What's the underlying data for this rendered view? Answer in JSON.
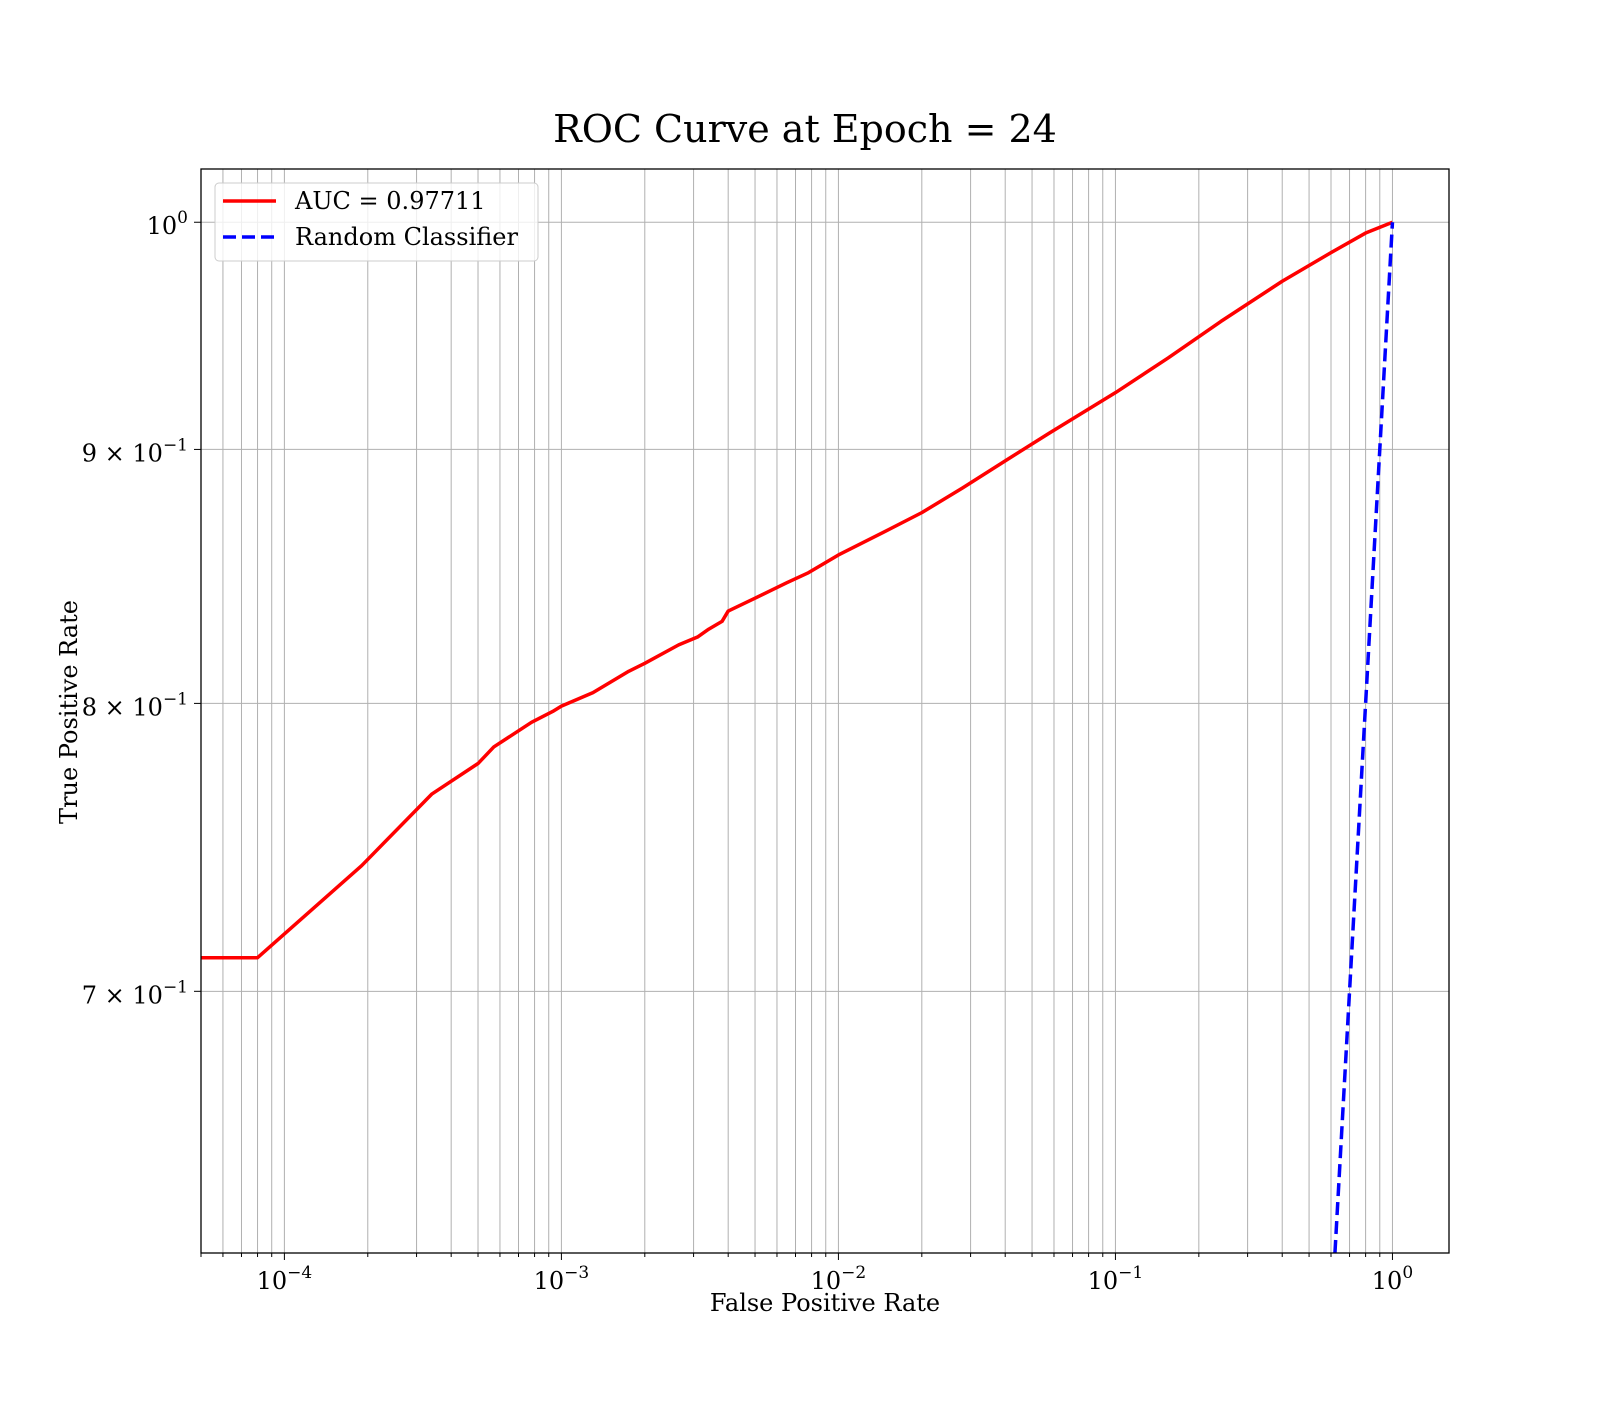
{
  "chart_data": {
    "type": "line",
    "title": "ROC Curve at Epoch = 24",
    "xlabel": "False Positive Rate",
    "ylabel": "True Positive Rate",
    "xscale": "log",
    "yscale": "log",
    "xlim": [
      5e-05,
      1.6
    ],
    "ylim": [
      0.62,
      1.025
    ],
    "grid": true,
    "legend_position": "top-left",
    "x_ticks": [
      {
        "value": 0.0001,
        "base": "10",
        "exp": "−4"
      },
      {
        "value": 0.001,
        "base": "10",
        "exp": "−3"
      },
      {
        "value": 0.01,
        "base": "10",
        "exp": "−2"
      },
      {
        "value": 0.1,
        "base": "10",
        "exp": "−1"
      },
      {
        "value": 1,
        "base": "10",
        "exp": "0"
      }
    ],
    "y_ticks": [
      {
        "value": 0.7,
        "base": "7 × 10",
        "exp": "−1"
      },
      {
        "value": 0.8,
        "base": "8 × 10",
        "exp": "−1"
      },
      {
        "value": 0.9,
        "base": "9 × 10",
        "exp": "−1"
      },
      {
        "value": 1.0,
        "base": "10",
        "exp": "0"
      }
    ],
    "series": [
      {
        "name": "AUC = 0.97711",
        "color": "#ff0000",
        "style": "solid",
        "x": [
          5e-05,
          8e-05,
          0.00019,
          0.00034,
          0.0005,
          0.00057,
          0.00078,
          0.00093,
          0.001,
          0.0013,
          0.00175,
          0.002,
          0.00265,
          0.0031,
          0.0034,
          0.0038,
          0.004,
          0.005,
          0.0065,
          0.0078,
          0.01,
          0.0145,
          0.02,
          0.028,
          0.041,
          0.058,
          0.1,
          0.155,
          0.24,
          0.4,
          0.6,
          0.8,
          1.0
        ],
        "y": [
          0.711,
          0.711,
          0.742,
          0.767,
          0.778,
          0.784,
          0.793,
          0.797,
          0.799,
          0.804,
          0.812,
          0.815,
          0.822,
          0.825,
          0.828,
          0.831,
          0.835,
          0.84,
          0.846,
          0.85,
          0.857,
          0.866,
          0.874,
          0.884,
          0.896,
          0.907,
          0.924,
          0.939,
          0.955,
          0.973,
          0.986,
          0.995,
          1.0
        ]
      },
      {
        "name": "Random Classifier",
        "color": "#0000ff",
        "style": "dashed",
        "x": [
          0.62,
          1.0
        ],
        "y": [
          0.62,
          1.0
        ]
      }
    ]
  }
}
